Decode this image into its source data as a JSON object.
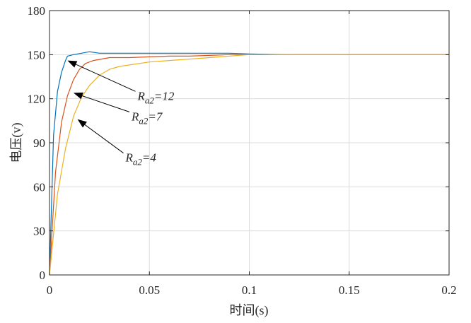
{
  "chart_data": {
    "type": "line",
    "title": "",
    "xlabel": "时间(s)",
    "ylabel": "电压(v)",
    "xlim": [
      0,
      0.2
    ],
    "ylim": [
      0,
      180
    ],
    "xticks": [
      0,
      0.05,
      0.1,
      0.15,
      0.2
    ],
    "xtick_labels": [
      "0",
      "0.05",
      "0.1",
      "0.15",
      "0.2"
    ],
    "yticks": [
      0,
      30,
      60,
      90,
      120,
      150,
      180
    ],
    "ytick_labels": [
      "0",
      "30",
      "60",
      "90",
      "120",
      "150",
      "180"
    ],
    "grid": true,
    "legend": "none",
    "series": [
      {
        "color": "#0072BD",
        "x": [
          0,
          0.002,
          0.004,
          0.006,
          0.008,
          0.009,
          0.012,
          0.016,
          0.02,
          0.025,
          0.03,
          0.035,
          0.04,
          0.05,
          0.06,
          0.07,
          0.08,
          0.09,
          0.1,
          0.12,
          0.15,
          0.2
        ],
        "y": [
          0,
          95,
          125,
          138,
          146,
          149,
          150,
          151,
          152,
          151,
          151,
          151,
          151,
          151,
          151,
          151,
          151,
          151,
          150.5,
          150,
          150,
          150
        ]
      },
      {
        "color": "#D95319",
        "x": [
          0,
          0.003,
          0.006,
          0.009,
          0.012,
          0.015,
          0.018,
          0.022,
          0.026,
          0.03,
          0.035,
          0.04,
          0.05,
          0.06,
          0.07,
          0.08,
          0.09,
          0.1,
          0.12,
          0.15,
          0.2
        ],
        "y": [
          0,
          70,
          104,
          122,
          133,
          140,
          144,
          146,
          147,
          148,
          148,
          148,
          148.5,
          149,
          149,
          149.5,
          150,
          150,
          150,
          150,
          150
        ]
      },
      {
        "color": "#EDB120",
        "x": [
          0,
          0.004,
          0.008,
          0.012,
          0.016,
          0.02,
          0.025,
          0.03,
          0.035,
          0.04,
          0.05,
          0.06,
          0.07,
          0.08,
          0.09,
          0.1,
          0.12,
          0.15,
          0.2
        ],
        "y": [
          0,
          55,
          86,
          108,
          121,
          129,
          136,
          140,
          142,
          143,
          145,
          146,
          147,
          148,
          149,
          150,
          150,
          150,
          150
        ]
      }
    ],
    "annotations": [
      {
        "base": "R",
        "sub": "a2",
        "suffix": "=12",
        "arrow_x": 0.009,
        "arrow_y": 146,
        "text_x": 0.043,
        "text_y": 125
      },
      {
        "base": "R",
        "sub": "a2",
        "suffix": "=7",
        "arrow_x": 0.012,
        "arrow_y": 124,
        "text_x": 0.04,
        "text_y": 111
      },
      {
        "base": "R",
        "sub": "a2",
        "suffix": "=4",
        "arrow_x": 0.014,
        "arrow_y": 106,
        "text_x": 0.037,
        "text_y": 83
      }
    ]
  }
}
